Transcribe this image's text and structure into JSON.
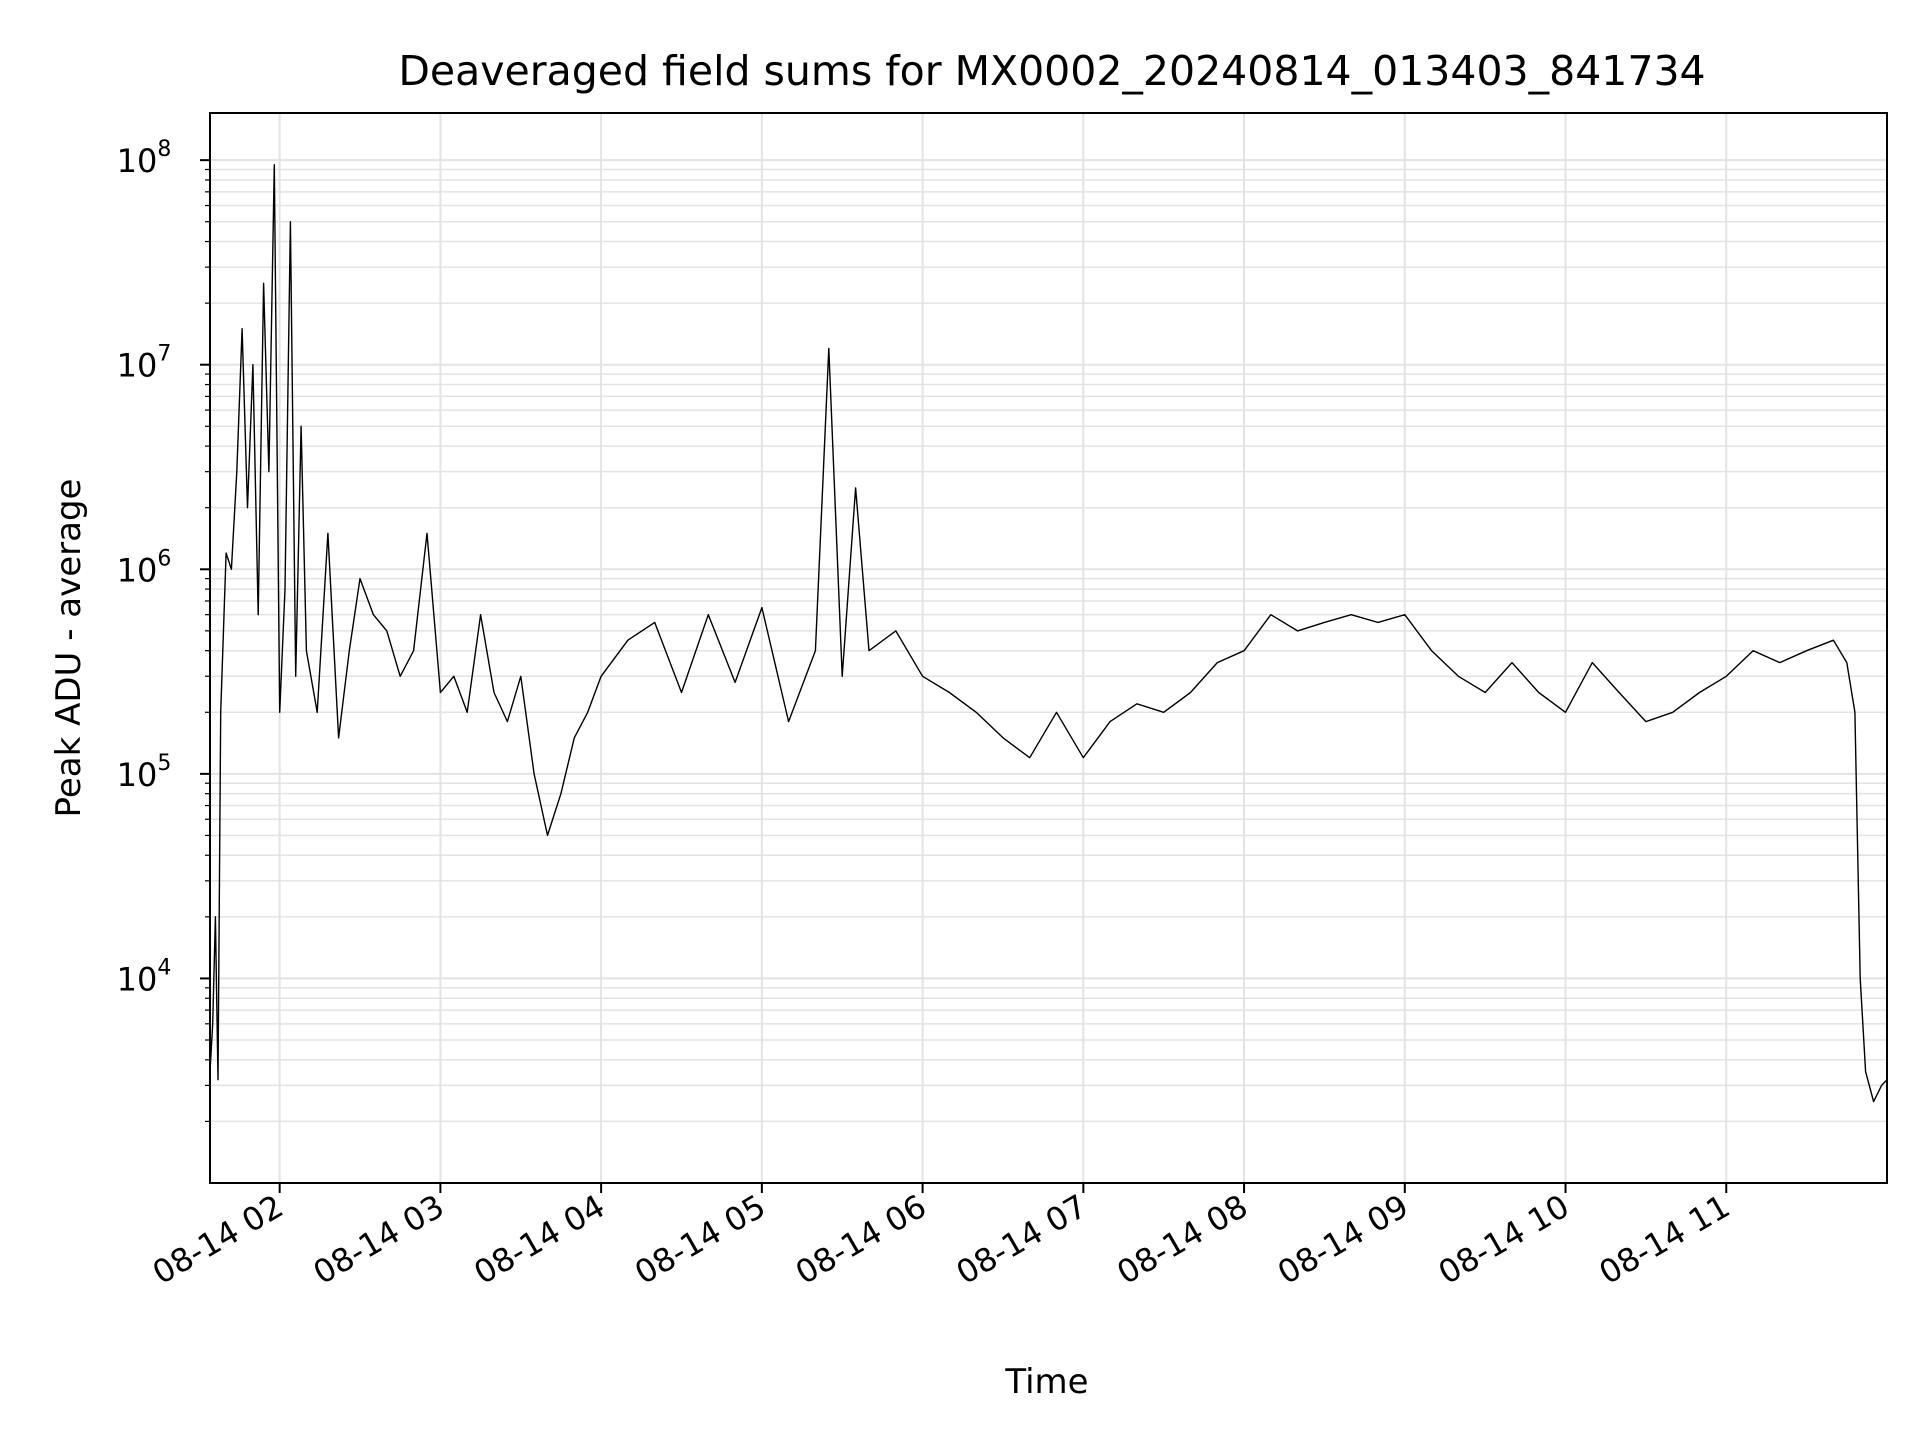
{
  "chart_data": {
    "type": "line",
    "title": "Deaveraged field sums for MX0002_20240814_013403_841734",
    "xlabel": "Time",
    "ylabel": "Peak ADU - average",
    "y_scale": "log",
    "ylim": [
      1000,
      170000000
    ],
    "xlim": [
      "2024-08-14T01:34",
      "2024-08-14T12:00"
    ],
    "grid": true,
    "x_ticks": [
      "08-14 02",
      "08-14 03",
      "08-14 04",
      "08-14 05",
      "08-14 06",
      "08-14 07",
      "08-14 08",
      "08-14 09",
      "08-14 10",
      "08-14 11"
    ],
    "x_tick_times": [
      "2024-08-14T02:00",
      "2024-08-14T03:00",
      "2024-08-14T04:00",
      "2024-08-14T05:00",
      "2024-08-14T06:00",
      "2024-08-14T07:00",
      "2024-08-14T08:00",
      "2024-08-14T09:00",
      "2024-08-14T10:00",
      "2024-08-14T11:00"
    ],
    "y_ticks": [
      {
        "base": "10",
        "exp": "4",
        "value": 10000
      },
      {
        "base": "10",
        "exp": "5",
        "value": 100000
      },
      {
        "base": "10",
        "exp": "6",
        "value": 1000000
      },
      {
        "base": "10",
        "exp": "7",
        "value": 10000000
      },
      {
        "base": "10",
        "exp": "8",
        "value": 100000000
      }
    ],
    "series": [
      {
        "color": "#000000",
        "x": [
          "2024-08-14T01:34",
          "2024-08-14T01:35",
          "2024-08-14T01:36",
          "2024-08-14T01:37",
          "2024-08-14T01:38",
          "2024-08-14T01:40",
          "2024-08-14T01:42",
          "2024-08-14T01:44",
          "2024-08-14T01:46",
          "2024-08-14T01:48",
          "2024-08-14T01:50",
          "2024-08-14T01:52",
          "2024-08-14T01:54",
          "2024-08-14T01:56",
          "2024-08-14T01:58",
          "2024-08-14T02:00",
          "2024-08-14T02:02",
          "2024-08-14T02:04",
          "2024-08-14T02:06",
          "2024-08-14T02:08",
          "2024-08-14T02:10",
          "2024-08-14T02:14",
          "2024-08-14T02:18",
          "2024-08-14T02:22",
          "2024-08-14T02:26",
          "2024-08-14T02:30",
          "2024-08-14T02:35",
          "2024-08-14T02:40",
          "2024-08-14T02:45",
          "2024-08-14T02:50",
          "2024-08-14T02:55",
          "2024-08-14T03:00",
          "2024-08-14T03:05",
          "2024-08-14T03:10",
          "2024-08-14T03:15",
          "2024-08-14T03:20",
          "2024-08-14T03:25",
          "2024-08-14T03:30",
          "2024-08-14T03:35",
          "2024-08-14T03:40",
          "2024-08-14T03:45",
          "2024-08-14T03:50",
          "2024-08-14T03:55",
          "2024-08-14T04:00",
          "2024-08-14T04:10",
          "2024-08-14T04:20",
          "2024-08-14T04:30",
          "2024-08-14T04:40",
          "2024-08-14T04:50",
          "2024-08-14T05:00",
          "2024-08-14T05:10",
          "2024-08-14T05:20",
          "2024-08-14T05:25",
          "2024-08-14T05:30",
          "2024-08-14T05:35",
          "2024-08-14T05:40",
          "2024-08-14T05:50",
          "2024-08-14T06:00",
          "2024-08-14T06:10",
          "2024-08-14T06:20",
          "2024-08-14T06:30",
          "2024-08-14T06:40",
          "2024-08-14T06:50",
          "2024-08-14T07:00",
          "2024-08-14T07:10",
          "2024-08-14T07:20",
          "2024-08-14T07:30",
          "2024-08-14T07:40",
          "2024-08-14T07:50",
          "2024-08-14T08:00",
          "2024-08-14T08:10",
          "2024-08-14T08:20",
          "2024-08-14T08:30",
          "2024-08-14T08:40",
          "2024-08-14T08:50",
          "2024-08-14T09:00",
          "2024-08-14T09:10",
          "2024-08-14T09:20",
          "2024-08-14T09:30",
          "2024-08-14T09:40",
          "2024-08-14T09:50",
          "2024-08-14T10:00",
          "2024-08-14T10:10",
          "2024-08-14T10:20",
          "2024-08-14T10:30",
          "2024-08-14T10:40",
          "2024-08-14T10:50",
          "2024-08-14T11:00",
          "2024-08-14T11:10",
          "2024-08-14T11:20",
          "2024-08-14T11:30",
          "2024-08-14T11:40",
          "2024-08-14T11:45",
          "2024-08-14T11:48",
          "2024-08-14T11:50",
          "2024-08-14T11:52",
          "2024-08-14T11:55",
          "2024-08-14T11:58",
          "2024-08-14T12:00"
        ],
        "y": [
          3500,
          6000,
          20000,
          3200,
          200000,
          1200000,
          1000000,
          3000000,
          15000000,
          2000000,
          10000000,
          600000,
          25000000,
          3000000,
          95000000,
          200000,
          800000,
          50000000,
          300000,
          5000000,
          400000,
          200000,
          1500000,
          150000,
          400000,
          900000,
          600000,
          500000,
          300000,
          400000,
          1500000,
          250000,
          300000,
          200000,
          600000,
          250000,
          180000,
          300000,
          100000,
          50000,
          80000,
          150000,
          200000,
          300000,
          450000,
          550000,
          250000,
          600000,
          280000,
          650000,
          180000,
          400000,
          12000000,
          300000,
          2500000,
          400000,
          500000,
          300000,
          250000,
          200000,
          150000,
          120000,
          200000,
          120000,
          180000,
          220000,
          200000,
          250000,
          350000,
          400000,
          600000,
          500000,
          550000,
          600000,
          550000,
          600000,
          400000,
          300000,
          250000,
          350000,
          250000,
          200000,
          350000,
          250000,
          180000,
          200000,
          250000,
          300000,
          400000,
          350000,
          400000,
          450000,
          350000,
          200000,
          10000,
          3500,
          2500,
          3000,
          3200
        ]
      }
    ]
  }
}
